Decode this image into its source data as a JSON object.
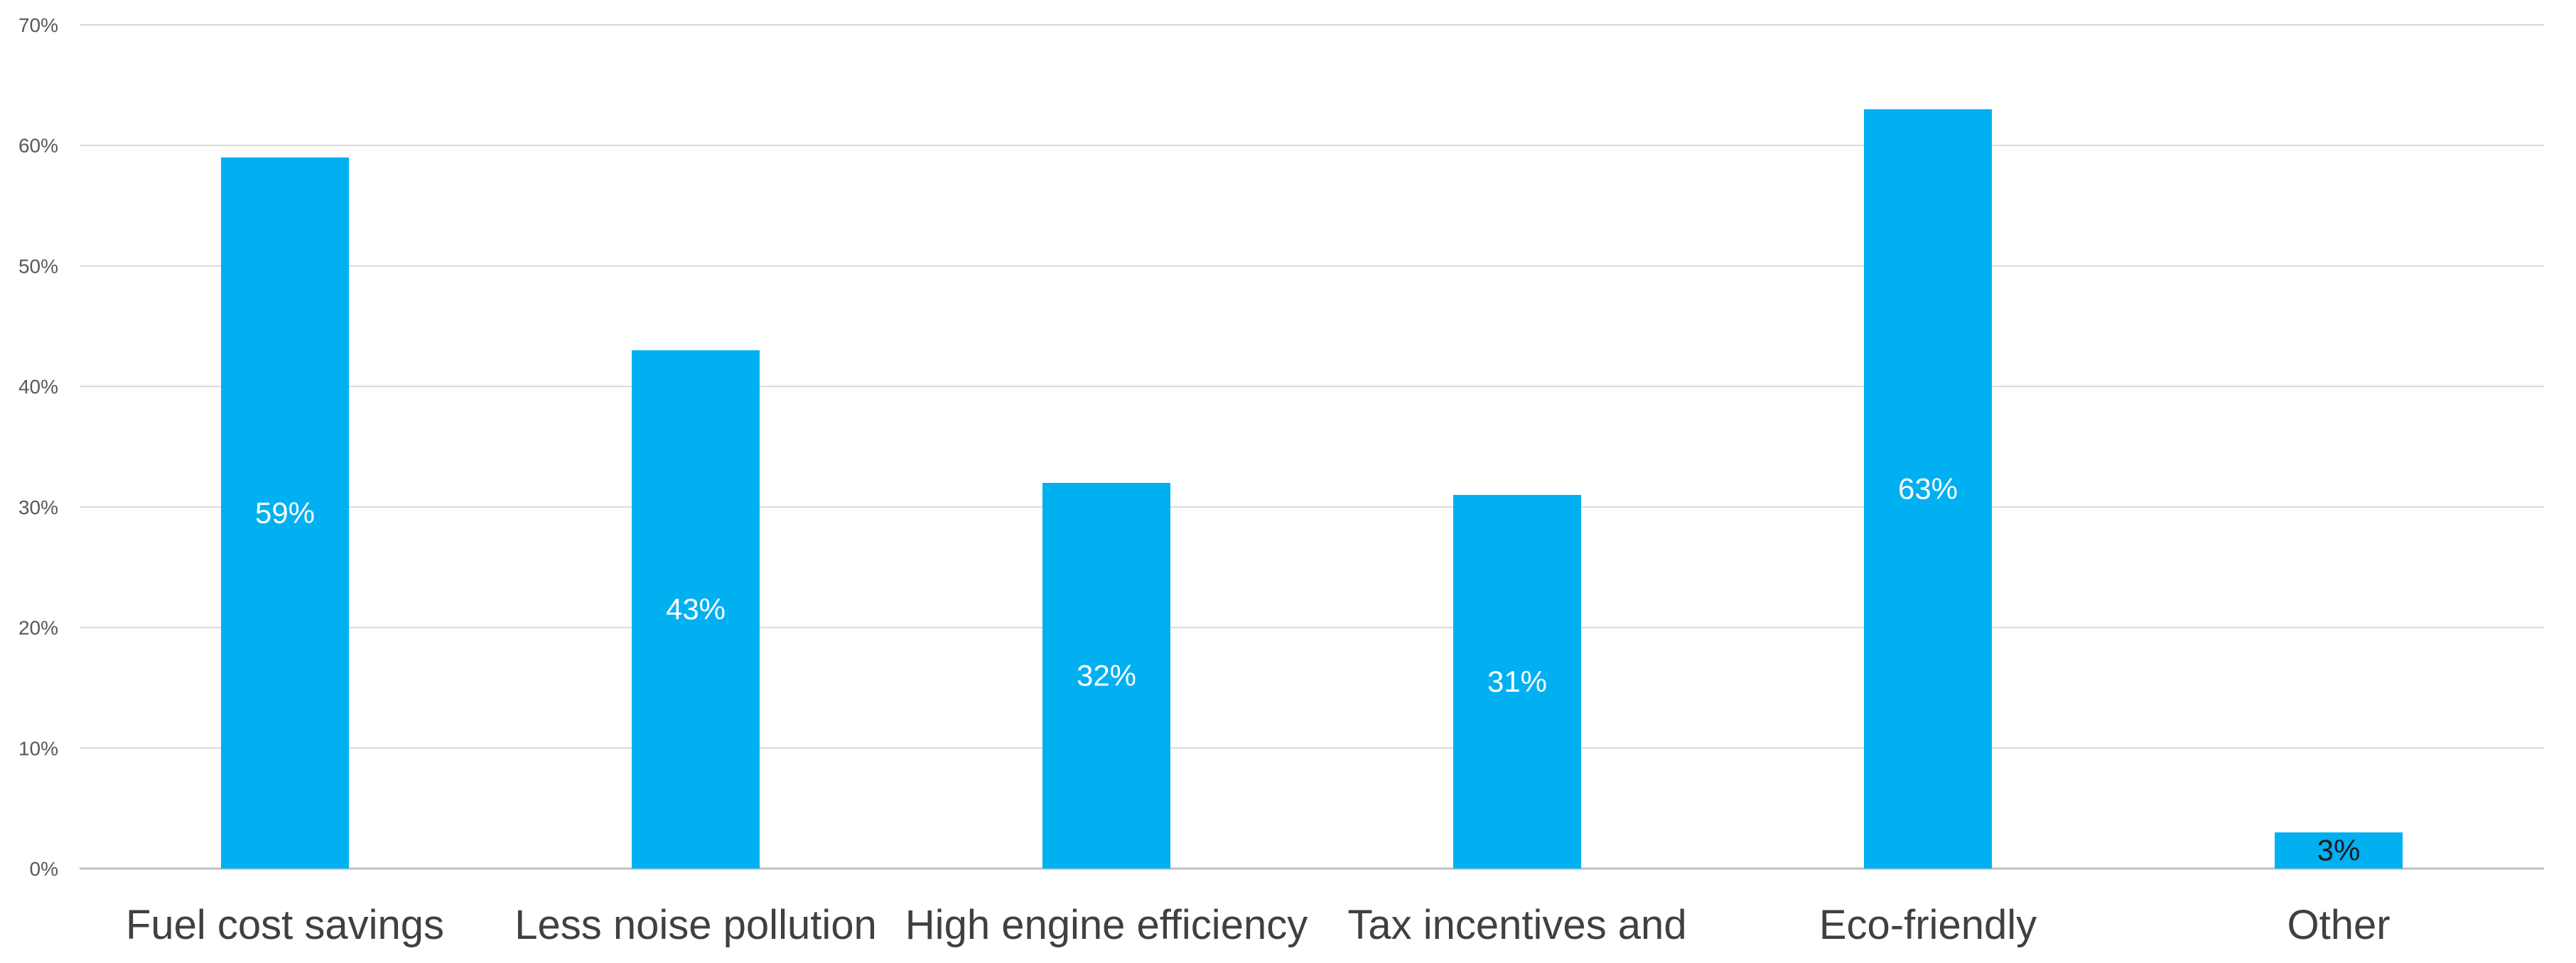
{
  "chart_data": {
    "type": "bar",
    "title": "",
    "xlabel": "",
    "ylabel": "",
    "categories": [
      "Fuel cost savings",
      "Less noise pollution",
      "High engine efficiency",
      "Tax incentives and",
      "Eco-friendly",
      "Other"
    ],
    "values": [
      59,
      43,
      32,
      31,
      63,
      3
    ],
    "value_labels": [
      "59%",
      "43%",
      "32%",
      "31%",
      "63%",
      "3%"
    ],
    "value_label_colors": [
      "#ffffff",
      "#ffffff",
      "#ffffff",
      "#ffffff",
      "#ffffff",
      "#1a1a1a"
    ],
    "ylim": [
      0,
      70
    ],
    "yticks": [
      0,
      10,
      20,
      30,
      40,
      50,
      60,
      70
    ],
    "ytick_labels": [
      "0%",
      "10%",
      "20%",
      "30%",
      "40%",
      "50%",
      "60%",
      "70%"
    ],
    "grid": true,
    "legend": "none",
    "bar_color": "#00B0F0",
    "grid_color": "#d9d9d9"
  }
}
